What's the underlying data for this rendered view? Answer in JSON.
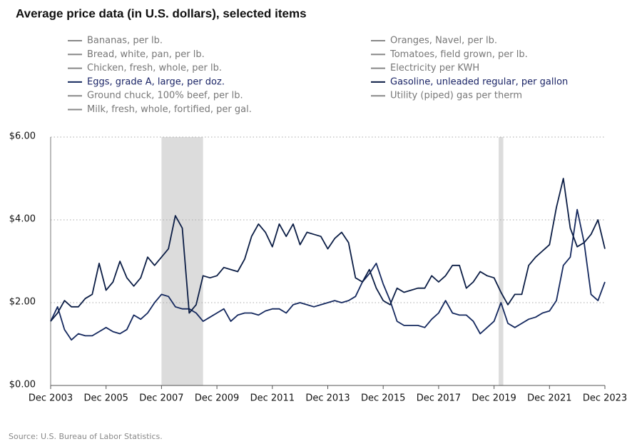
{
  "chart_data": {
    "type": "line",
    "title": "Average price data (in U.S. dollars), selected items",
    "source": "Source: U.S. Bureau of Labor Statistics.",
    "x": [
      "Dec 2003",
      "Mar 2004",
      "Jun 2004",
      "Sep 2004",
      "Dec 2004",
      "Mar 2005",
      "Jun 2005",
      "Sep 2005",
      "Dec 2005",
      "Mar 2006",
      "Jun 2006",
      "Sep 2006",
      "Dec 2006",
      "Mar 2007",
      "Jun 2007",
      "Sep 2007",
      "Dec 2007",
      "Mar 2008",
      "Jun 2008",
      "Sep 2008",
      "Dec 2008",
      "Mar 2009",
      "Jun 2009",
      "Sep 2009",
      "Dec 2009",
      "Mar 2010",
      "Jun 2010",
      "Sep 2010",
      "Dec 2010",
      "Mar 2011",
      "Jun 2011",
      "Sep 2011",
      "Dec 2011",
      "Mar 2012",
      "Jun 2012",
      "Sep 2012",
      "Dec 2012",
      "Mar 2013",
      "Jun 2013",
      "Sep 2013",
      "Dec 2013",
      "Mar 2014",
      "Jun 2014",
      "Sep 2014",
      "Dec 2014",
      "Mar 2015",
      "Jun 2015",
      "Sep 2015",
      "Dec 2015",
      "Mar 2016",
      "Jun 2016",
      "Sep 2016",
      "Dec 2016",
      "Mar 2017",
      "Jun 2017",
      "Sep 2017",
      "Dec 2017",
      "Mar 2018",
      "Jun 2018",
      "Sep 2018",
      "Dec 2018",
      "Mar 2019",
      "Jun 2019",
      "Sep 2019",
      "Dec 2019",
      "Mar 2020",
      "Jun 2020",
      "Sep 2020",
      "Dec 2020",
      "Mar 2021",
      "Jun 2021",
      "Sep 2021",
      "Dec 2021",
      "Mar 2022",
      "Jun 2022",
      "Sep 2022",
      "Dec 2022",
      "Mar 2023",
      "Jun 2023",
      "Sep 2023",
      "Dec 2023"
    ],
    "xticks": [
      "Dec 2003",
      "Dec 2005",
      "Dec 2007",
      "Dec 2009",
      "Dec 2011",
      "Dec 2013",
      "Dec 2015",
      "Dec 2017",
      "Dec 2019",
      "Dec 2021",
      "Dec 2023"
    ],
    "ylim": [
      0,
      6
    ],
    "yticks": [
      {
        "value": 0,
        "label": "$0.00"
      },
      {
        "value": 2,
        "label": "$2.00"
      },
      {
        "value": 4,
        "label": "$4.00"
      },
      {
        "value": 6,
        "label": "$6.00"
      }
    ],
    "grid": true,
    "shaded_periods": [
      {
        "start": "Dec 2007",
        "end": "Jun 2009"
      },
      {
        "start": "Feb 2020",
        "end": "Apr 2020"
      }
    ],
    "shade_color": "#dcdcdc",
    "inactive_color": "#888888",
    "series": [
      {
        "name": "Bananas, per lb."
      },
      {
        "name": "Bread, white, pan, per lb."
      },
      {
        "name": "Chicken, fresh, whole, per lb."
      },
      {
        "name": "Eggs, grade A, large, per doz.",
        "color": "#14285e",
        "values": [
          1.55,
          1.9,
          1.35,
          1.1,
          1.25,
          1.2,
          1.2,
          1.3,
          1.4,
          1.3,
          1.25,
          1.35,
          1.7,
          1.6,
          1.75,
          2.0,
          2.2,
          2.15,
          1.9,
          1.85,
          1.85,
          1.75,
          1.55,
          1.65,
          1.75,
          1.85,
          1.55,
          1.7,
          1.75,
          1.75,
          1.7,
          1.8,
          1.85,
          1.85,
          1.75,
          1.95,
          2.0,
          1.95,
          1.9,
          1.95,
          2.0,
          2.05,
          2.0,
          2.05,
          2.15,
          2.5,
          2.7,
          2.95,
          2.45,
          2.05,
          1.55,
          1.45,
          1.45,
          1.45,
          1.4,
          1.6,
          1.75,
          2.05,
          1.75,
          1.7,
          1.7,
          1.55,
          1.25,
          1.4,
          1.55,
          2.0,
          1.5,
          1.4,
          1.5,
          1.6,
          1.65,
          1.75,
          1.8,
          2.05,
          2.9,
          3.1,
          4.25,
          3.45,
          2.2,
          2.05,
          2.5
        ]
      },
      {
        "name": "Ground chuck, 100% beef, per lb."
      },
      {
        "name": "Milk, fresh, whole, fortified, per gal."
      },
      {
        "name": "Oranges, Navel, per lb."
      },
      {
        "name": "Tomatoes, field grown, per lb."
      },
      {
        "name": "Electricity per KWH"
      },
      {
        "name": "Gasoline, unleaded regular, per gallon",
        "color": "#0b1d45",
        "values": [
          1.55,
          1.75,
          2.05,
          1.9,
          1.9,
          2.1,
          2.2,
          2.95,
          2.3,
          2.5,
          3.0,
          2.6,
          2.4,
          2.6,
          3.1,
          2.9,
          3.1,
          3.3,
          4.1,
          3.8,
          1.75,
          1.95,
          2.65,
          2.6,
          2.65,
          2.85,
          2.8,
          2.75,
          3.05,
          3.6,
          3.9,
          3.7,
          3.35,
          3.9,
          3.6,
          3.9,
          3.4,
          3.7,
          3.65,
          3.6,
          3.3,
          3.55,
          3.7,
          3.45,
          2.6,
          2.5,
          2.8,
          2.35,
          2.05,
          1.95,
          2.35,
          2.25,
          2.3,
          2.35,
          2.35,
          2.65,
          2.5,
          2.65,
          2.9,
          2.9,
          2.35,
          2.5,
          2.75,
          2.65,
          2.6,
          2.25,
          1.95,
          2.2,
          2.2,
          2.9,
          3.1,
          3.25,
          3.4,
          4.3,
          5.0,
          3.8,
          3.35,
          3.45,
          3.65,
          4.0,
          3.3
        ]
      },
      {
        "name": "Utility (piped) gas per therm"
      }
    ]
  }
}
